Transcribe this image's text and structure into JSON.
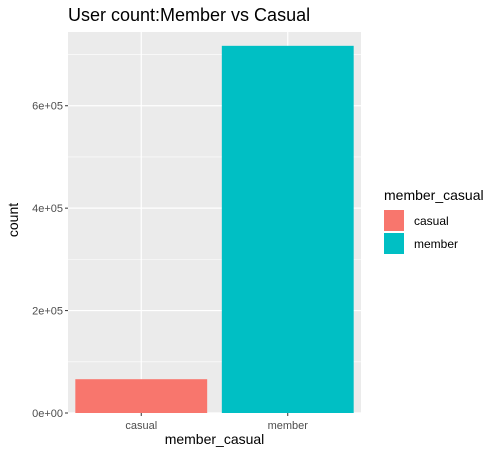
{
  "chart_data": {
    "type": "bar",
    "title": "User count:Member vs Casual",
    "xlabel": "member_casual",
    "ylabel": "count",
    "categories": [
      "casual",
      "member"
    ],
    "values": [
      66000,
      717000
    ],
    "ylim": [
      0,
      744000
    ],
    "yticks": [
      0,
      200000,
      400000,
      600000
    ],
    "ytick_labels": [
      "0e+00",
      "2e+05",
      "4e+05",
      "6e+05"
    ],
    "colors": [
      "#F8766D",
      "#00BFC4"
    ],
    "panel_background": "#EBEBEB",
    "grid": true,
    "legend": {
      "title": "member_casual",
      "position": "right",
      "entries": [
        {
          "label": "casual",
          "color": "#F8766D"
        },
        {
          "label": "member",
          "color": "#00BFC4"
        }
      ]
    }
  }
}
